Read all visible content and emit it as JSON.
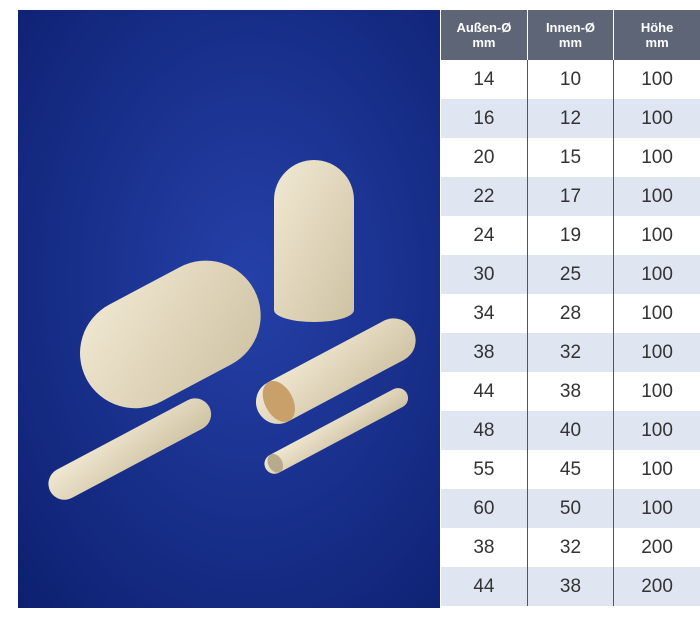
{
  "table": {
    "header": [
      [
        "Außen-Ø",
        "mm"
      ],
      [
        "Innen-Ø",
        "mm"
      ],
      [
        "Höhe",
        "mm"
      ]
    ],
    "rows": [
      [
        14,
        10,
        100
      ],
      [
        16,
        12,
        100
      ],
      [
        20,
        15,
        100
      ],
      [
        22,
        17,
        100
      ],
      [
        24,
        19,
        100
      ],
      [
        30,
        25,
        100
      ],
      [
        34,
        28,
        100
      ],
      [
        38,
        32,
        100
      ],
      [
        44,
        38,
        100
      ],
      [
        48,
        40,
        100
      ],
      [
        55,
        45,
        100
      ],
      [
        60,
        50,
        100
      ],
      [
        38,
        32,
        200
      ],
      [
        44,
        38,
        200
      ]
    ]
  }
}
